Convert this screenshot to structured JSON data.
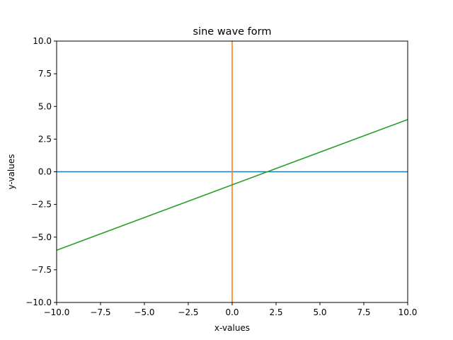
{
  "chart_data": {
    "type": "line",
    "title": "sine wave form",
    "xlabel": "x-values",
    "ylabel": "y-values",
    "xlim": [
      -10,
      10
    ],
    "ylim": [
      -10,
      10
    ],
    "xticks": [
      -10,
      -7.5,
      -5,
      -2.5,
      0,
      2.5,
      5,
      7.5,
      10
    ],
    "yticks": [
      -10,
      -7.5,
      -5,
      -2.5,
      0,
      2.5,
      5,
      7.5,
      10
    ],
    "xtick_labels": [
      "−10.0",
      "−7.5",
      "−5.0",
      "−2.5",
      "0.0",
      "2.5",
      "5.0",
      "7.5",
      "10.0"
    ],
    "ytick_labels": [
      "−10.0",
      "−7.5",
      "−5.0",
      "−2.5",
      "0.0",
      "2.5",
      "5.0",
      "7.5",
      "10.0"
    ],
    "grid": false,
    "legend": "none",
    "series": [
      {
        "color": "#1f77b4",
        "x": [
          -10,
          10
        ],
        "y": [
          0,
          0
        ]
      },
      {
        "color": "#ff7f0e",
        "x": [
          0,
          0
        ],
        "y": [
          -10,
          10
        ]
      },
      {
        "color": "#2ca02c",
        "x": [
          -10,
          10
        ],
        "y": [
          -6,
          4
        ]
      }
    ]
  }
}
